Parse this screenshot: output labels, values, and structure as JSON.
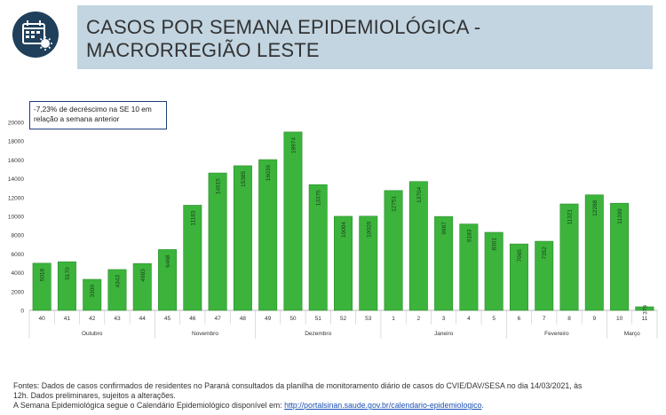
{
  "header": {
    "title_line1": "CASOS POR SEMANA EPIDEMIOLÓGICA -",
    "title_line2": "MACRORREGIÃO LESTE",
    "icon": "calendar-virus-icon"
  },
  "annotation": {
    "line1": "-7,23% de decréscimo na SE 10 em",
    "line2": "relação a semana anterior"
  },
  "chart_data": {
    "type": "bar",
    "categories": [
      "40",
      "41",
      "42",
      "43",
      "44",
      "45",
      "46",
      "47",
      "48",
      "49",
      "50",
      "51",
      "52",
      "53",
      "1",
      "2",
      "3",
      "4",
      "5",
      "6",
      "7",
      "8",
      "9",
      "10",
      "11"
    ],
    "values": [
      5018,
      5170,
      3300,
      4343,
      4983,
      6468,
      11183,
      14615,
      15385,
      16036,
      18974,
      13375,
      10004,
      10020,
      12751,
      13704,
      9987,
      9183,
      8301,
      7065,
      7352,
      11321,
      12288,
      11399,
      379
    ],
    "months": [
      {
        "label": "Outubro",
        "start": 0,
        "end": 4
      },
      {
        "label": "Novembro",
        "start": 5,
        "end": 8
      },
      {
        "label": "Dezembro",
        "start": 9,
        "end": 13
      },
      {
        "label": "Janeiro",
        "start": 14,
        "end": 18
      },
      {
        "label": "Fevereiro",
        "start": 19,
        "end": 22
      },
      {
        "label": "Março",
        "start": 23,
        "end": 24
      }
    ],
    "ylim": [
      0,
      20000
    ],
    "yticks": [
      0,
      2000,
      4000,
      6000,
      8000,
      10000,
      12000,
      14000,
      16000,
      18000,
      20000
    ],
    "bar_color": "#3cb43c",
    "bar_edge": "#2a8a2a",
    "grid": false,
    "title": "",
    "xlabel": "",
    "ylabel": ""
  },
  "footer": {
    "line1": "Fontes: Dados de casos confirmados de residentes no Paraná consultados da planilha de monitoramento diário de casos do CVIE/DAV/SESA no dia 14/03/2021, às",
    "line2": "12h. Dados preliminares, sujeitos a alterações.",
    "line3_prefix": "A Semana Epidemiológica segue o Calendário Epidemiológico disponível em: ",
    "link_text": "http://portalsinan.saude.gov.br/calendario-epidemiologico",
    "line3_suffix": "."
  }
}
